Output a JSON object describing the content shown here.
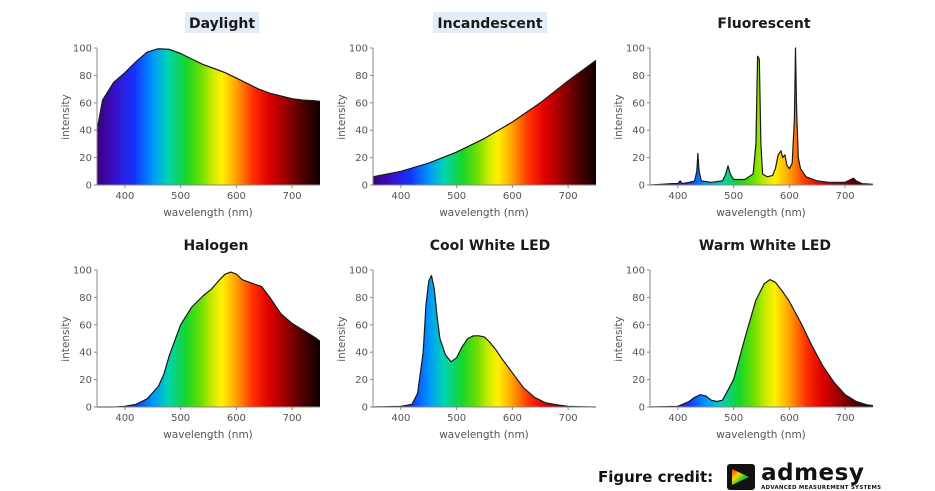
{
  "credit": {
    "label": "Figure credit:",
    "brand": "admesy",
    "tagline": "ADVANCED MEASUREMENT SYSTEMS"
  },
  "colors": {
    "curve_stroke": "#1a1a1a",
    "axis": "#888888",
    "text": "#555555"
  },
  "chart_data": [
    {
      "type": "area",
      "title": "Daylight",
      "title_highlight": true,
      "xlabel": "wavelength (nm)",
      "ylabel": "intensity",
      "xlim": [
        350,
        750
      ],
      "ylim": [
        0,
        100
      ],
      "xticks": [
        400,
        500,
        600,
        700
      ],
      "yticks": [
        0,
        20,
        40,
        60,
        80,
        100
      ],
      "x": [
        350,
        360,
        380,
        400,
        420,
        440,
        460,
        480,
        500,
        520,
        540,
        560,
        580,
        600,
        620,
        640,
        660,
        680,
        700,
        720,
        740,
        750
      ],
      "y": [
        40,
        62,
        75,
        82,
        90,
        97,
        99.5,
        99,
        96,
        92,
        88,
        85,
        82,
        78,
        74,
        70,
        67,
        65,
        63,
        62,
        61.5,
        61
      ]
    },
    {
      "type": "area",
      "title": "Incandescent",
      "title_highlight": true,
      "xlabel": "wavelength (nm)",
      "ylabel": "intensity",
      "xlim": [
        350,
        750
      ],
      "ylim": [
        0,
        100
      ],
      "xticks": [
        400,
        500,
        600,
        700
      ],
      "yticks": [
        0,
        20,
        40,
        60,
        80,
        100
      ],
      "x": [
        350,
        400,
        450,
        500,
        550,
        600,
        650,
        700,
        750
      ],
      "y": [
        6,
        10,
        16,
        24,
        34,
        46,
        60,
        76,
        91
      ]
    },
    {
      "type": "area",
      "title": "Fluorescent",
      "title_highlight": false,
      "xlabel": "wavelength (nm)",
      "ylabel": "intensity",
      "xlim": [
        350,
        750
      ],
      "ylim": [
        0,
        100
      ],
      "xticks": [
        400,
        500,
        600,
        700
      ],
      "yticks": [
        0,
        20,
        40,
        60,
        80,
        100
      ],
      "x": [
        350,
        370,
        390,
        400,
        404,
        408,
        420,
        430,
        434,
        436,
        438,
        442,
        460,
        480,
        486,
        490,
        494,
        500,
        520,
        535,
        540,
        543,
        546,
        549,
        552,
        560,
        570,
        575,
        580,
        585,
        588,
        592,
        596,
        600,
        605,
        609,
        611,
        613,
        616,
        620,
        630,
        650,
        670,
        700,
        710,
        715,
        720,
        730,
        750
      ],
      "y": [
        0,
        0.5,
        1,
        1,
        3,
        1,
        2,
        3,
        10,
        23,
        10,
        3,
        2,
        3,
        8,
        14,
        8,
        4,
        4,
        8,
        30,
        94,
        92,
        30,
        8,
        6,
        7,
        12,
        22,
        25,
        20,
        22,
        14,
        12,
        16,
        48,
        100,
        55,
        20,
        12,
        6,
        3,
        2,
        2,
        4,
        5,
        3,
        1,
        0.5
      ]
    },
    {
      "type": "area",
      "title": "Halogen",
      "title_highlight": false,
      "xlabel": "wavelength (nm)",
      "ylabel": "intensity",
      "xlim": [
        350,
        750
      ],
      "ylim": [
        0,
        100
      ],
      "xticks": [
        400,
        500,
        600,
        700
      ],
      "yticks": [
        0,
        20,
        40,
        60,
        80,
        100
      ],
      "x": [
        350,
        380,
        400,
        420,
        440,
        460,
        470,
        480,
        500,
        520,
        540,
        555,
        570,
        580,
        590,
        600,
        610,
        630,
        645,
        660,
        680,
        700,
        720,
        740,
        750
      ],
      "y": [
        0,
        0,
        0.5,
        2,
        6,
        15,
        24,
        38,
        60,
        73,
        81,
        86,
        93,
        97,
        98.5,
        97,
        93,
        90,
        88,
        80,
        68,
        61,
        56,
        51,
        48
      ]
    },
    {
      "type": "area",
      "title": "Cool White LED",
      "title_highlight": false,
      "xlabel": "wavelength (nm)",
      "ylabel": "intensity",
      "xlim": [
        350,
        750
      ],
      "ylim": [
        0,
        100
      ],
      "xticks": [
        400,
        500,
        600,
        700
      ],
      "yticks": [
        0,
        20,
        40,
        60,
        80,
        100
      ],
      "x": [
        350,
        400,
        420,
        430,
        440,
        445,
        450,
        455,
        460,
        465,
        470,
        480,
        490,
        500,
        510,
        520,
        530,
        540,
        550,
        560,
        570,
        580,
        600,
        620,
        640,
        660,
        680,
        700,
        720,
        750
      ],
      "y": [
        0,
        0.5,
        2,
        10,
        40,
        75,
        92,
        96,
        86,
        66,
        50,
        38,
        33,
        36,
        44,
        50,
        52,
        52,
        51,
        47,
        42,
        36,
        25,
        14,
        7,
        3,
        1.5,
        0.5,
        0.2,
        0
      ]
    },
    {
      "type": "area",
      "title": "Warm White LED",
      "title_highlight": false,
      "xlabel": "wavelength (nm)",
      "ylabel": "intensity",
      "xlim": [
        350,
        750
      ],
      "ylim": [
        0,
        100
      ],
      "xticks": [
        400,
        500,
        600,
        700
      ],
      "yticks": [
        0,
        20,
        40,
        60,
        80,
        100
      ],
      "x": [
        350,
        400,
        420,
        430,
        440,
        450,
        460,
        470,
        480,
        500,
        520,
        540,
        555,
        565,
        575,
        590,
        600,
        620,
        640,
        660,
        680,
        700,
        720,
        740,
        750
      ],
      "y": [
        0,
        0.5,
        4,
        7,
        9,
        8,
        5,
        4,
        5,
        20,
        50,
        78,
        90,
        93,
        91,
        83,
        77,
        62,
        45,
        30,
        18,
        9,
        4,
        1.5,
        1
      ]
    }
  ]
}
